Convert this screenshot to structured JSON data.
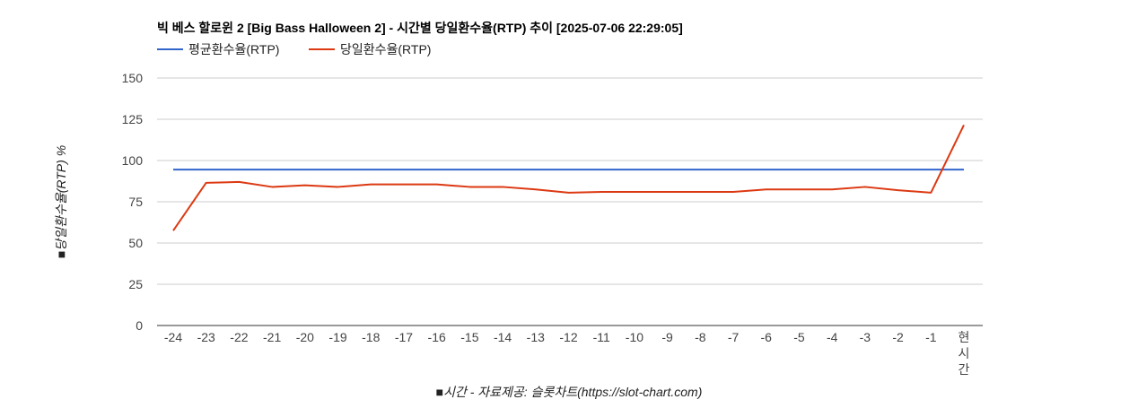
{
  "chart_data": {
    "type": "line",
    "title": "빅 베스 할로윈 2 [Big Bass Halloween 2] - 시간별 당일환수율(RTP) 추이 [2025-07-06 22:29:05]",
    "xlabel": "■시간 - 자료제공: 슬롯차트(https://slot-chart.com)",
    "ylabel": "■당일환수율(RTP) %",
    "ylim": [
      0,
      150
    ],
    "yticks": [
      0,
      25,
      50,
      75,
      100,
      125,
      150
    ],
    "grid": true,
    "legend_position": "top-left",
    "categories": [
      "-24",
      "-23",
      "-22",
      "-21",
      "-20",
      "-19",
      "-18",
      "-17",
      "-16",
      "-15",
      "-14",
      "-13",
      "-12",
      "-11",
      "-10",
      "-9",
      "-8",
      "-7",
      "-6",
      "-5",
      "-4",
      "-3",
      "-2",
      "-1",
      "현시간"
    ],
    "series": [
      {
        "name": "평균환수율(RTP)",
        "color": "#3366cc",
        "values": [
          94.5,
          94.5,
          94.5,
          94.5,
          94.5,
          94.5,
          94.5,
          94.5,
          94.5,
          94.5,
          94.5,
          94.5,
          94.5,
          94.5,
          94.5,
          94.5,
          94.5,
          94.5,
          94.5,
          94.5,
          94.5,
          94.5,
          94.5,
          94.5,
          94.5
        ]
      },
      {
        "name": "당일환수율(RTP)",
        "color": "#dc3912",
        "values": [
          57.5,
          86.5,
          87,
          84,
          85,
          84,
          85.5,
          85.5,
          85.5,
          84,
          84,
          82.5,
          80.5,
          81,
          81,
          81,
          81,
          81,
          82.5,
          82.5,
          82.5,
          84,
          82,
          80.5,
          121.5
        ]
      }
    ]
  }
}
